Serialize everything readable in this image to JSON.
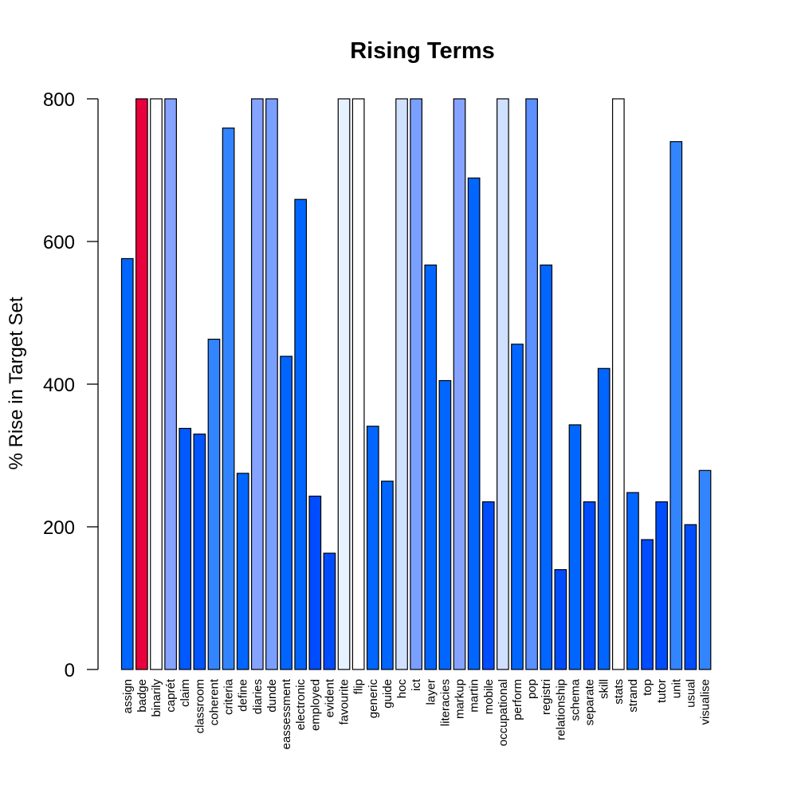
{
  "chart_data": {
    "type": "bar",
    "title": "Rising Terms",
    "xlabel": "",
    "ylabel": "% Rise in Target Set",
    "ylim": [
      0,
      800
    ],
    "yticks": [
      0,
      200,
      400,
      600,
      800
    ],
    "ytick_labels": [
      "0",
      "200",
      "400",
      "600",
      "800"
    ],
    "grid": false,
    "legend": "none",
    "categories": [
      "assign",
      "badge",
      "binarily",
      "caprét",
      "claim",
      "classroom",
      "coherent",
      "criteria",
      "define",
      "diaries",
      "dunde",
      "eassessment",
      "electronic",
      "employed",
      "evident",
      "favourite",
      "flip",
      "generic",
      "guide",
      "hoc",
      "ict",
      "layer",
      "literacies",
      "markup",
      "martin",
      "mobile",
      "occupational",
      "perform",
      "pop",
      "registri",
      "relationship",
      "schema",
      "separate",
      "skill",
      "stats",
      "strand",
      "top",
      "tutor",
      "unit",
      "usual",
      "visualise"
    ],
    "values": [
      576,
      800,
      800,
      800,
      338,
      330,
      463,
      759,
      275,
      800,
      800,
      439,
      659,
      243,
      163,
      800,
      800,
      341,
      264,
      800,
      800,
      567,
      405,
      800,
      689,
      235,
      800,
      456,
      800,
      567,
      140,
      343,
      235,
      422,
      800,
      248,
      182,
      235,
      740,
      203,
      279
    ],
    "colors": [
      "#0066FF",
      "#E8003D",
      "#FFFFFF",
      "#85A3FF",
      "#005AFF",
      "#0055FF",
      "#3385FF",
      "#3385FF",
      "#0066FF",
      "#85A3FF",
      "#7AA0FF",
      "#0066FF",
      "#0066FF",
      "#004DFF",
      "#004DFF",
      "#E6F2FF",
      "#FFFFFF",
      "#0066FF",
      "#0066FF",
      "#D0E0FF",
      "#7AA0FF",
      "#0066FF",
      "#0066FF",
      "#85A3FF",
      "#0066FF",
      "#004DFF",
      "#D0E0FF",
      "#0066FF",
      "#5C8FFF",
      "#0066FF",
      "#004DFF",
      "#0066FF",
      "#004DFF",
      "#0066FF",
      "#FFFFFF",
      "#0066FF",
      "#004DFF",
      "#004DFF",
      "#3385FF",
      "#004DFF",
      "#3385FF"
    ]
  }
}
